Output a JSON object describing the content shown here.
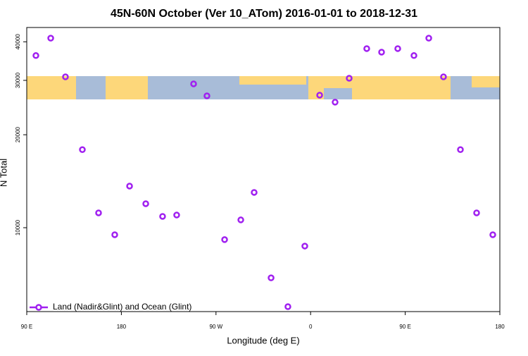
{
  "chart_data": {
    "type": "scatter",
    "title": "45N-60N October (Ver 10_ATom)   2016-01-01 to 2018-12-31",
    "x_label": "Longitude (deg E)",
    "y_label": "N Total",
    "x": [
      98.7,
      112.8,
      126.8,
      142.9,
      158.3,
      173.7,
      187.8,
      203.2,
      219.2,
      232.6,
      248.7,
      261.4,
      278.2,
      293.6,
      306.3,
      322.4,
      338.4,
      354.5,
      368.6,
      383.3,
      396.7,
      413.4,
      427.5,
      442.9,
      458.3,
      472.4,
      486.4,
      502.5,
      517.9,
      533.3
    ],
    "series": [
      {
        "name": "Land (Nadir&Glint) and Ocean (Glint)",
        "color": "#a020f0",
        "values": [
          36100,
          41100,
          30800,
          17900,
          11170,
          9490,
          13640,
          11960,
          10880,
          10990,
          29230,
          26730,
          9150,
          10600,
          13010,
          6880,
          5550,
          8720,
          26870,
          25500,
          30480,
          38020,
          37030,
          38020,
          36100,
          41100,
          30800,
          17900,
          11170,
          9490
        ]
      }
    ],
    "xlim": [
      90,
      540
    ],
    "xticks": [
      {
        "value": 90,
        "label": "90 E"
      },
      180,
      {
        "value": 270,
        "label": "90 W"
      },
      {
        "value": 360,
        "label": "0"
      },
      {
        "value": 450,
        "label": "90 E"
      },
      {
        "value": 540,
        "label": "180"
      }
    ],
    "ylim": [
      5350,
      44500
    ],
    "yticks": [
      10000,
      20000,
      30000,
      40000
    ],
    "ylog": true,
    "legend": "bottom-left"
  }
}
